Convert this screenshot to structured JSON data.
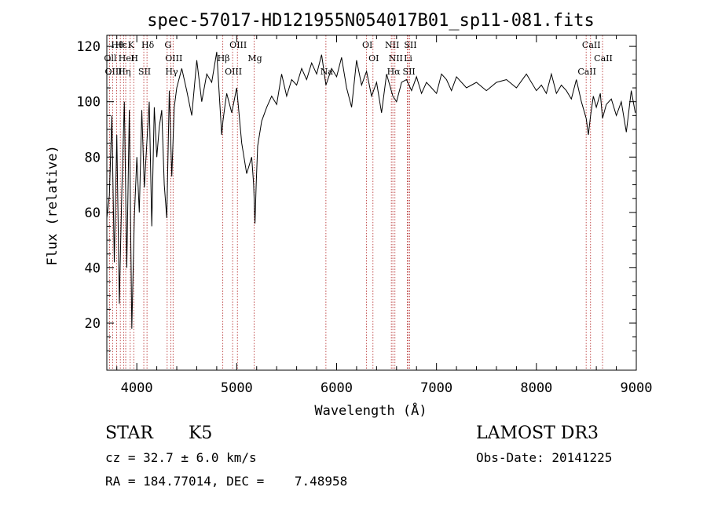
{
  "chart_data": {
    "type": "line",
    "title": "spec-57017-HD121955N054017B01_sp11-081.fits",
    "xlabel": "Wavelength (Å)",
    "ylabel": "Flux (relative)",
    "xlim": [
      3700,
      9000
    ],
    "ylim": [
      3,
      124
    ],
    "xticks": [
      4000,
      5000,
      6000,
      7000,
      8000,
      9000
    ],
    "yticks": [
      20,
      40,
      60,
      80,
      100,
      120
    ],
    "grid": false,
    "series": [
      {
        "name": "flux",
        "x": [
          3700,
          3725,
          3750,
          3775,
          3800,
          3825,
          3850,
          3875,
          3900,
          3925,
          3950,
          3975,
          4000,
          4025,
          4050,
          4075,
          4100,
          4125,
          4150,
          4175,
          4200,
          4225,
          4250,
          4275,
          4300,
          4325,
          4350,
          4375,
          4400,
          4450,
          4500,
          4550,
          4600,
          4650,
          4700,
          4750,
          4800,
          4850,
          4862,
          4880,
          4900,
          4950,
          5000,
          5050,
          5100,
          5150,
          5170,
          5183,
          5195,
          5210,
          5250,
          5300,
          5350,
          5400,
          5450,
          5500,
          5550,
          5600,
          5650,
          5700,
          5750,
          5800,
          5850,
          5893,
          5950,
          6000,
          6050,
          6100,
          6150,
          6200,
          6250,
          6300,
          6350,
          6400,
          6450,
          6500,
          6563,
          6600,
          6650,
          6700,
          6750,
          6800,
          6850,
          6900,
          6950,
          7000,
          7050,
          7100,
          7150,
          7200,
          7300,
          7400,
          7500,
          7600,
          7700,
          7800,
          7900,
          8000,
          8050,
          8100,
          8150,
          8200,
          8250,
          8300,
          8350,
          8400,
          8450,
          8498,
          8520,
          8542,
          8570,
          8600,
          8640,
          8662,
          8700,
          8750,
          8800,
          8850,
          8900,
          8950,
          8990
        ],
        "values": [
          58,
          66,
          95,
          42,
          88,
          27,
          68,
          100,
          40,
          97,
          18,
          58,
          80,
          60,
          97,
          69,
          85,
          100,
          55,
          98,
          80,
          91,
          97,
          70,
          58,
          104,
          73,
          98,
          105,
          112,
          104,
          95,
          115,
          100,
          110,
          107,
          118,
          88,
          93,
          98,
          103,
          96,
          105,
          85,
          74,
          80,
          70,
          56,
          70,
          84,
          93,
          98,
          102,
          99,
          110,
          102,
          108,
          106,
          112,
          108,
          114,
          110,
          117,
          106,
          112,
          109,
          116,
          105,
          98,
          115,
          106,
          111,
          102,
          107,
          96,
          110,
          102,
          100,
          107,
          108,
          104,
          109,
          103,
          107,
          105,
          103,
          110,
          108,
          104,
          109,
          105,
          107,
          104,
          107,
          108,
          105,
          110,
          104,
          106,
          103,
          110,
          103,
          106,
          104,
          101,
          108,
          100,
          94,
          88,
          95,
          102,
          98,
          103,
          94,
          99,
          101,
          95,
          100,
          89,
          104,
          96
        ]
      }
    ],
    "spectral_lines": [
      {
        "label": "Hθ",
        "wavelength": 3798
      },
      {
        "label": "Oll",
        "wavelength": 3727
      },
      {
        "label": "OIII",
        "wavelength": 3759
      },
      {
        "label": "Hε",
        "wavelength": 3835
      },
      {
        "label": "HeI",
        "wavelength": 3889
      },
      {
        "label": "Hη",
        "wavelength": 3868
      },
      {
        "label": "K",
        "wavelength": 3934
      },
      {
        "label": "H",
        "wavelength": 3969
      },
      {
        "label": "SII",
        "wavelength": 4070
      },
      {
        "label": "Hδ",
        "wavelength": 4102
      },
      {
        "label": "OIII",
        "wavelength": 4363
      },
      {
        "label": "Hγ",
        "wavelength": 4341
      },
      {
        "label": "G",
        "wavelength": 4304
      },
      {
        "label": "Hβ",
        "wavelength": 4861
      },
      {
        "label": "OIII",
        "wavelength": 4959
      },
      {
        "label": "OIII",
        "wavelength": 5007
      },
      {
        "label": "Mg",
        "wavelength": 5175
      },
      {
        "label": "Na",
        "wavelength": 5893
      },
      {
        "label": "OI",
        "wavelength": 6300
      },
      {
        "label": "OI",
        "wavelength": 6364
      },
      {
        "label": "Hα",
        "wavelength": 6563
      },
      {
        "label": "NII",
        "wavelength": 6548
      },
      {
        "label": "NII",
        "wavelength": 6584
      },
      {
        "label": "SII",
        "wavelength": 6717
      },
      {
        "label": "SII",
        "wavelength": 6731
      },
      {
        "label": "Li",
        "wavelength": 6708
      },
      {
        "label": "CaII",
        "wavelength": 8498
      },
      {
        "label": "CaII",
        "wavelength": 8542
      },
      {
        "label": "CaII",
        "wavelength": 8662
      }
    ]
  },
  "info": {
    "class": "STAR",
    "subclass": "K5",
    "survey": "LAMOST DR3",
    "cz": "cz = 32.7 ± 6.0 km/s",
    "obs_date": "Obs-Date: 20141225",
    "coords": "RA = 184.77014, DEC =    7.48958"
  },
  "colors": {
    "line": "#000000",
    "marker": "#b22222",
    "background": "#ffffff"
  }
}
